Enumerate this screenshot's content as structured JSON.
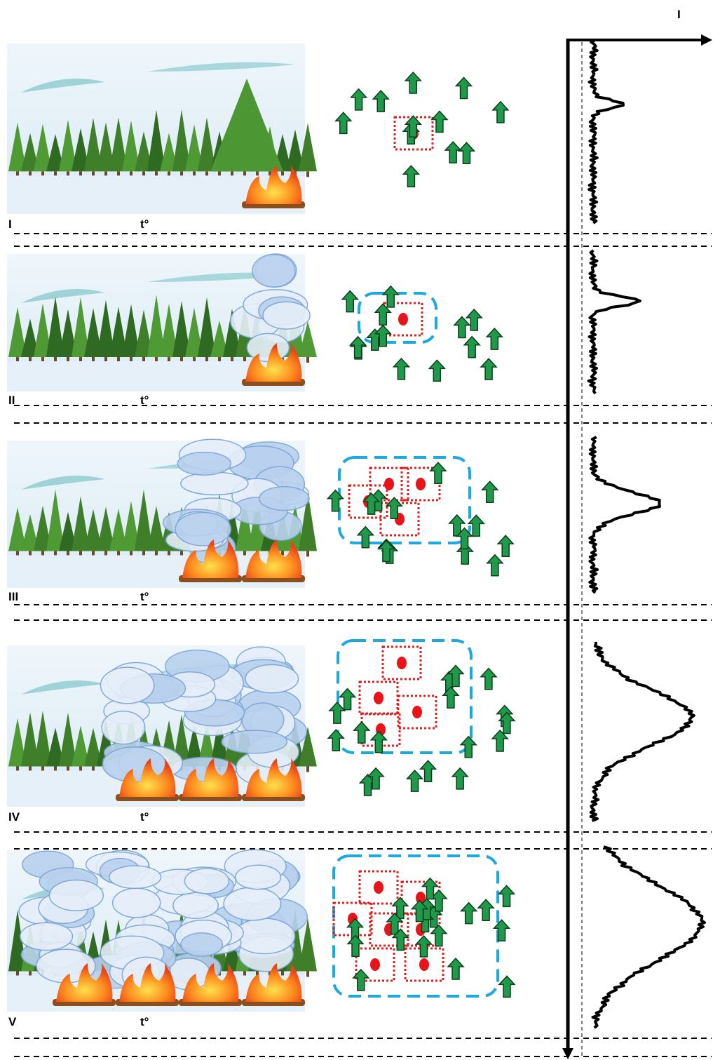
{
  "axis_label": "I",
  "stages": [
    {
      "label": "I",
      "temperature": "t°"
    },
    {
      "label": "II",
      "temperature": "t°"
    },
    {
      "label": "III",
      "temperature": "t°"
    },
    {
      "label": "IV",
      "temperature": "t°"
    },
    {
      "label": "V",
      "temperature": "t°"
    }
  ]
}
